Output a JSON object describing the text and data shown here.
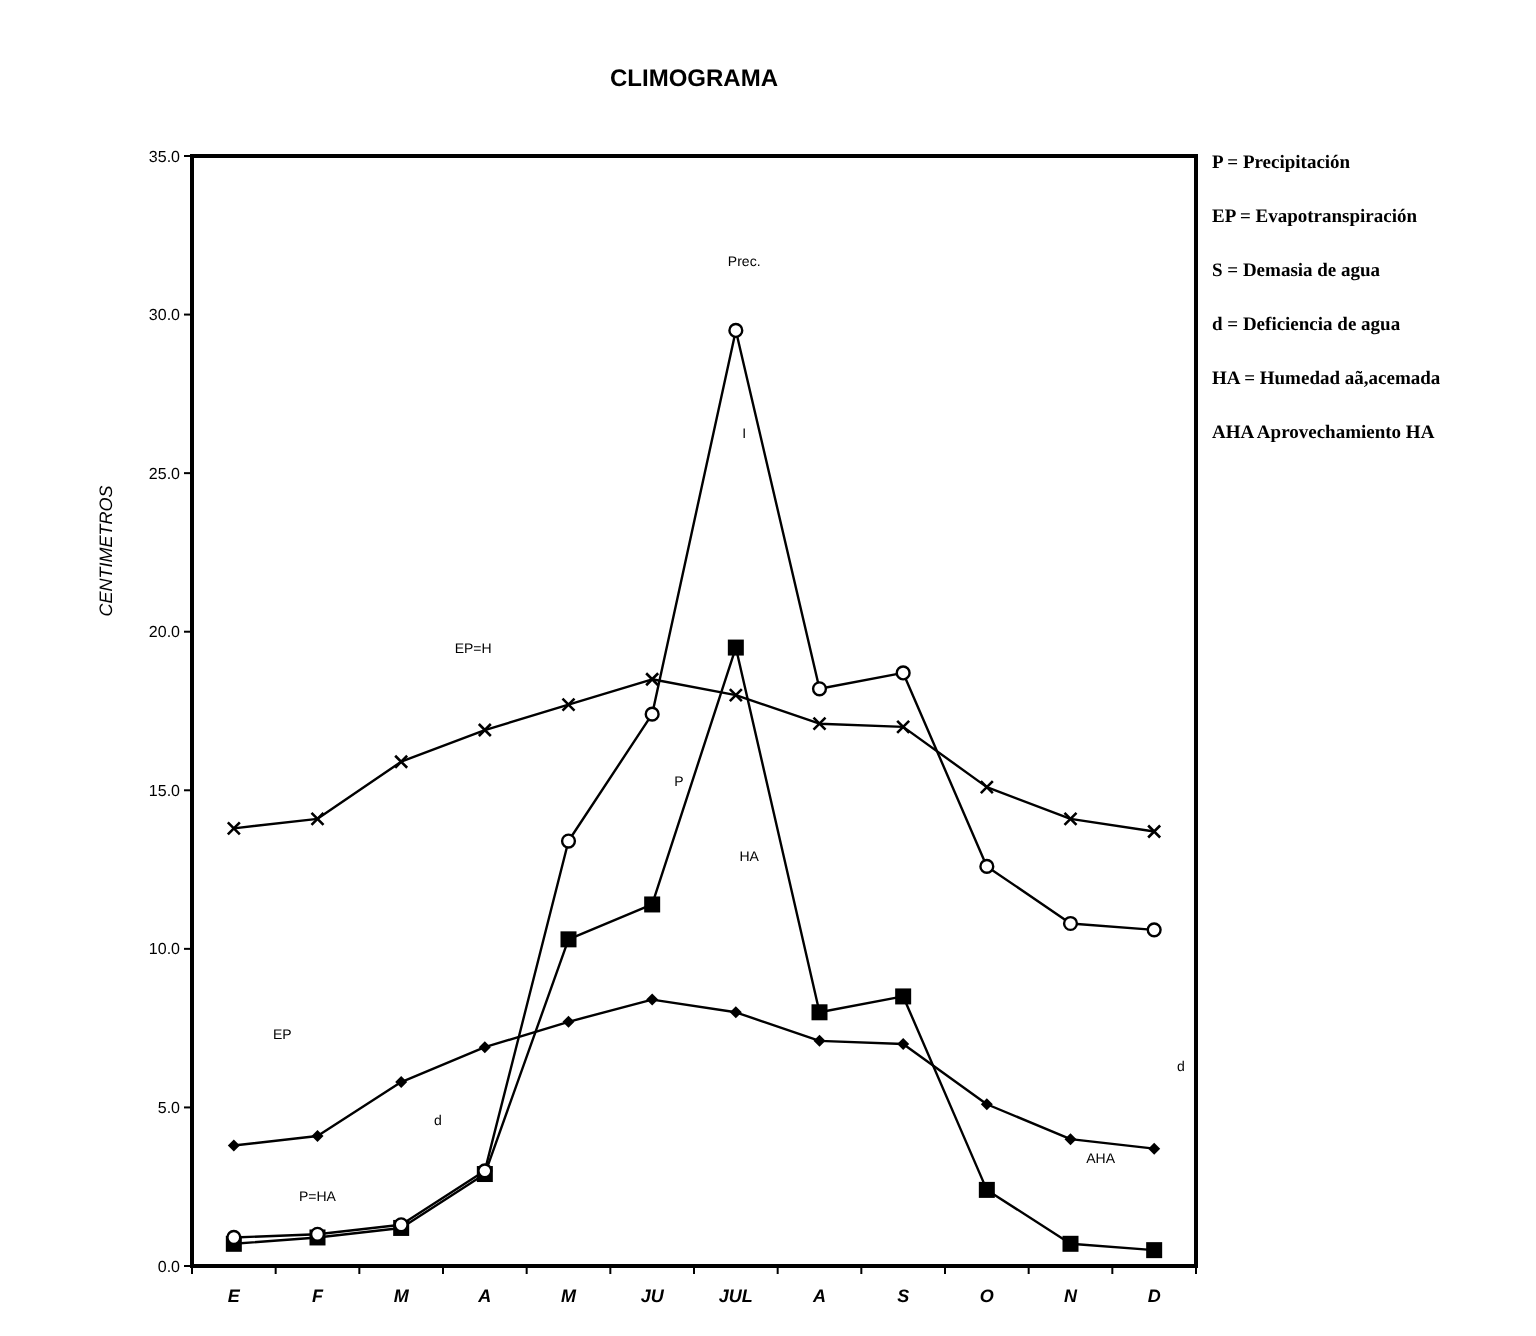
{
  "chart_data": {
    "type": "line",
    "title": "CLIMOGRAMA",
    "ylabel": "CENTIMETROS",
    "categories": [
      "E",
      "F",
      "M",
      "A",
      "M",
      "JU",
      "JUL",
      "A",
      "S",
      "O",
      "N",
      "D"
    ],
    "ylim": [
      0,
      35
    ],
    "yticks": [
      {
        "value": 0,
        "label": "0.0"
      },
      {
        "value": 5,
        "label": "5.0"
      },
      {
        "value": 10,
        "label": "10.0"
      },
      {
        "value": 15,
        "label": "15.0"
      },
      {
        "value": 20,
        "label": "20.0"
      },
      {
        "value": 25,
        "label": "25.0"
      },
      {
        "value": 30,
        "label": "30.0"
      },
      {
        "value": 35,
        "label": "35.0"
      }
    ],
    "grid": false,
    "series": [
      {
        "color": "#000000",
        "marker": "circle",
        "values": [
          0.9,
          1.0,
          1.3,
          3.0,
          13.4,
          17.4,
          29.5,
          18.2,
          18.7,
          12.6,
          10.8,
          10.6
        ]
      },
      {
        "color": "#000000",
        "marker": "cross",
        "values": [
          13.8,
          14.1,
          15.9,
          16.9,
          17.7,
          18.5,
          18.0,
          17.1,
          17.0,
          15.1,
          14.1,
          13.7
        ]
      },
      {
        "color": "#000000",
        "marker": "square",
        "values": [
          0.7,
          0.9,
          1.2,
          2.9,
          10.3,
          11.4,
          19.5,
          8.0,
          8.5,
          2.4,
          0.7,
          0.5
        ]
      },
      {
        "color": "#000000",
        "marker": "diamond",
        "values": [
          3.8,
          4.1,
          5.8,
          6.9,
          7.7,
          8.4,
          8.0,
          7.1,
          7.0,
          5.1,
          4.0,
          3.7
        ]
      }
    ],
    "annotations": [
      "Prec.",
      "I",
      "EP=H",
      "P",
      "HA",
      "EP",
      "d",
      "P=HA",
      "AHA",
      "d",
      "P = Precipitación",
      "EP = Evapotranspiración",
      "S = Demasia de agua",
      "d = Deficiencia de agua",
      "HA = Humedad aã,acemada",
      "AHA Aprovechamiento HA"
    ]
  }
}
